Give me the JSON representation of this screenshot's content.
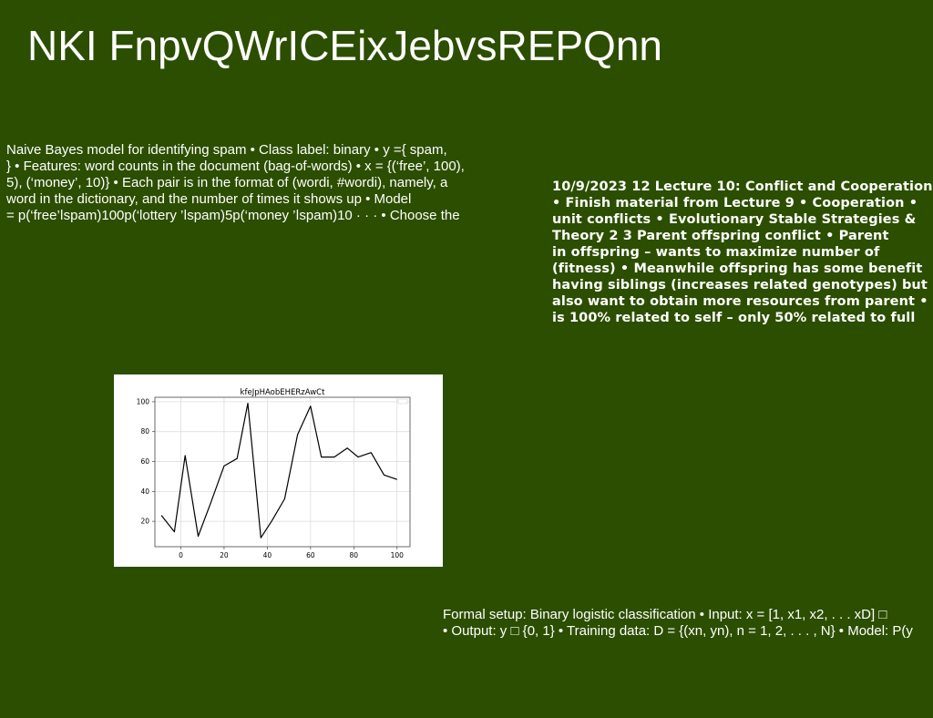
{
  "title": "NKI FnpvQWrICEixJebvsREPQnn",
  "text_left": "Naive Bayes model for identifying spam • Class label: binary • y ={ spam,\n} • Features: word counts in the document (bag-of-words) • x = {(‘free’, 100),\n5), (‘money’, 10)} • Each pair is in the format of (wordi, #wordi), namely, a\nword in the dictionary, and the number of times it shows up • Model\n= p(‘free’ǀspam)100p(‘lottery ’ǀspam)5p(‘money ’ǀspam)10 · · · • Choose the",
  "text_right": "10/9/2023 12 Lecture 10: Conflict and Cooperation\n• Finish material from Lecture 9 • Cooperation •\nunit conflicts • Evolutionary Stable Strategies &\nTheory 2 3 Parent offspring conflict • Parent\nin offspring – wants to maximize number of\n(fitness) • Meanwhile offspring has some benefit\nhaving siblings (increases related genotypes) but\nalso want to obtain more resources from parent •\nis 100% related to self – only 50% related to full",
  "text_bottom": "Formal setup: Binary logistic classification • Input: x = [1, x1, x2, . . . xD] □\n• Output: y □ {0, 1} • Training data: D = {(xn, yn), n = 1, 2, . . . , N} • Model: P(y",
  "chart_data": {
    "type": "line",
    "title": "kfeJpHAobEHERzAwCt",
    "xlabel": "",
    "ylabel": "",
    "xlim": [
      -12,
      106
    ],
    "ylim": [
      3,
      103
    ],
    "xticks": [
      0,
      20,
      40,
      60,
      80,
      100
    ],
    "yticks": [
      20,
      40,
      60,
      80,
      100
    ],
    "grid": true,
    "legend": "top-right",
    "x": [
      -9,
      -3,
      2,
      8,
      14,
      20,
      26,
      31,
      37,
      42,
      48,
      54,
      60,
      65,
      71,
      77,
      82,
      88,
      94,
      100
    ],
    "series": [
      {
        "values": [
          24,
          13,
          64,
          10,
          33,
          57,
          62,
          99,
          9,
          20,
          35,
          78,
          97,
          63,
          63,
          69,
          63,
          66,
          51,
          48
        ],
        "color": "#000000"
      }
    ]
  }
}
